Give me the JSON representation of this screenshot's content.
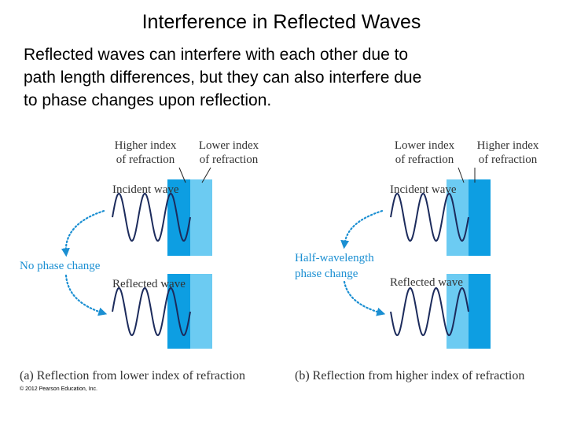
{
  "title": "Interference in Reflected Waves",
  "body": {
    "lines": [
      "Reflected waves can interfere with each other due to",
      "path length differences, but they can also interfere due",
      "to phase changes upon reflection."
    ]
  },
  "panels": [
    {
      "left_medium": [
        "Higher index",
        "of refraction"
      ],
      "right_medium": [
        "Lower index",
        "of refraction"
      ],
      "incident": "Incident wave",
      "reflected": "Reflected wave",
      "phase": [
        "No phase change"
      ],
      "caption": "(a) Reflection from lower index of refraction"
    },
    {
      "left_medium": [
        "Lower index",
        "of refraction"
      ],
      "right_medium": [
        "Higher index",
        "of refraction"
      ],
      "incident": "Incident wave",
      "reflected": "Reflected wave",
      "phase": [
        "Half-wavelength",
        "phase change"
      ],
      "caption": "(b) Reflection from higher index of refraction"
    }
  ],
  "copyright": "© 2012 Pearson Education, Inc."
}
